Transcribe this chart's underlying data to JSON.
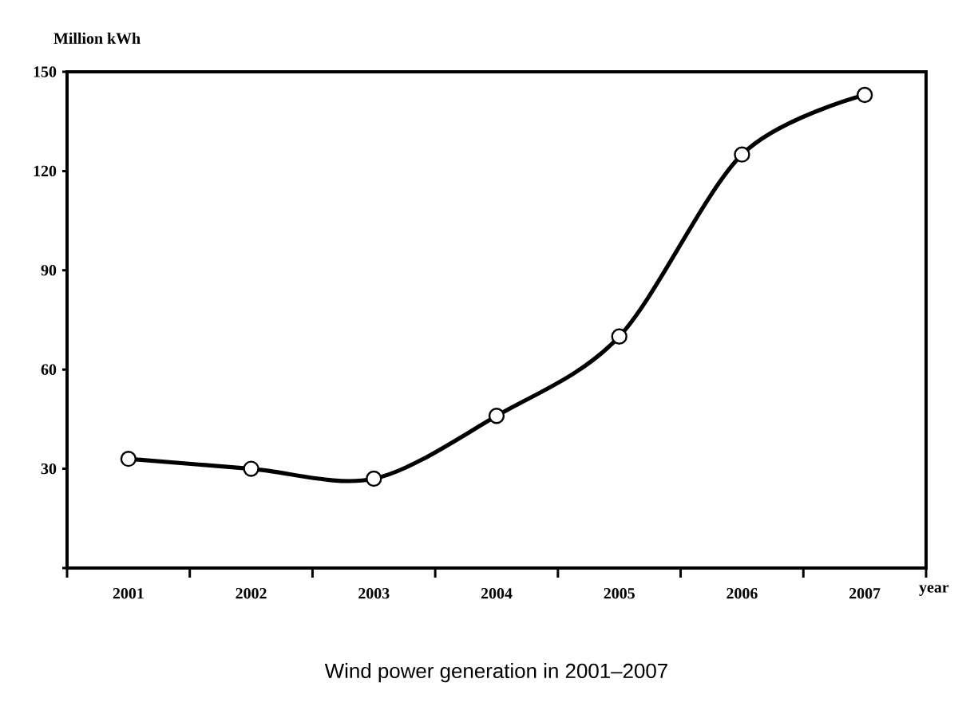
{
  "chart_data": {
    "type": "line",
    "title": "Wind power generation in 2001–2007",
    "xlabel": "year",
    "ylabel": "Million kWh",
    "categories": [
      "2001",
      "2002",
      "2003",
      "2004",
      "2005",
      "2006",
      "2007"
    ],
    "series": [
      {
        "color": "#000000",
        "values": [
          33,
          30,
          27,
          46,
          70,
          125,
          143
        ]
      }
    ],
    "ylim": [
      0,
      150
    ],
    "yticks": [
      {
        "value": 0,
        "label": null
      },
      30,
      60,
      90,
      120,
      150
    ],
    "marker": "circle",
    "line_style": "solid",
    "grid": false,
    "legend": false
  }
}
